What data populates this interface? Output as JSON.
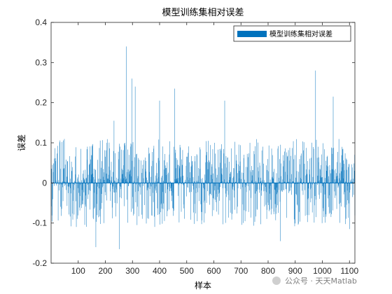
{
  "chart_data": {
    "type": "bar",
    "title": "模型训练集相对误差",
    "xlabel": "样本",
    "ylabel": "误差",
    "xlim": [
      0,
      1120
    ],
    "ylim": [
      -0.2,
      0.4
    ],
    "xticks": [
      100,
      200,
      300,
      400,
      500,
      600,
      700,
      800,
      900,
      1000,
      1100
    ],
    "yticks": [
      -0.2,
      -0.1,
      0,
      0.1,
      0.2,
      0.3,
      0.4
    ],
    "legend": {
      "label": "模型训练集相对误差",
      "position": "top-right"
    },
    "color": "#0072BD",
    "n_samples": 1120,
    "highlighted_points": [
      {
        "x": 165,
        "y": -0.16
      },
      {
        "x": 232,
        "y": 0.155
      },
      {
        "x": 252,
        "y": -0.165
      },
      {
        "x": 278,
        "y": 0.34
      },
      {
        "x": 298,
        "y": 0.26
      },
      {
        "x": 310,
        "y": 0.24
      },
      {
        "x": 400,
        "y": 0.205
      },
      {
        "x": 455,
        "y": 0.235
      },
      {
        "x": 640,
        "y": 0.205
      },
      {
        "x": 845,
        "y": -0.145
      },
      {
        "x": 975,
        "y": 0.28
      },
      {
        "x": 1040,
        "y": 0.215
      },
      {
        "x": 1100,
        "y": -0.115
      }
    ]
  },
  "watermark": "公众号 · 天天Matlab"
}
